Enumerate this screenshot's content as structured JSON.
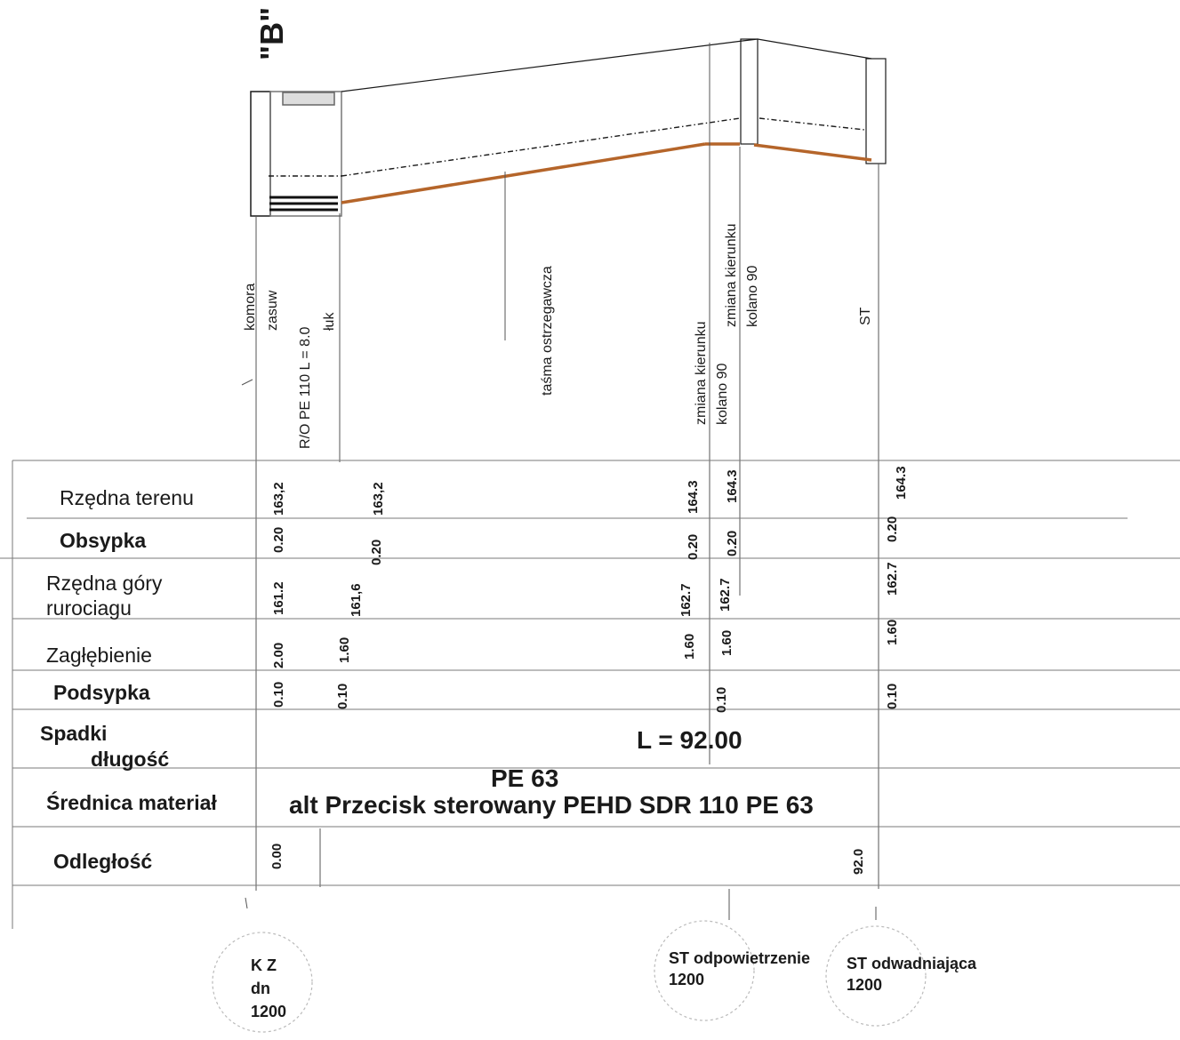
{
  "title": "\"B\"",
  "structures": {
    "komora": "komora",
    "zasuw": "zasuw",
    "ro": "R/O  PE 110 L = 8.0",
    "luk": "łuk",
    "tasma": "taśma ostrzegawcza",
    "zmiana1": "zmiana kierunku",
    "kolano1": "kolano 90",
    "zmiana2": "zmiana kierunku",
    "kolano2": "kolano 90",
    "st": "ST"
  },
  "rows": {
    "rzedna_terenu": "Rzędna terenu",
    "obsypka": "Obsypka",
    "rzedna_gory_1": "Rzędna góry",
    "rzedna_gory_2": "rurociagu",
    "zaglebienie": "Zagłębienie",
    "podsypka": "Podsypka",
    "spadki": "Spadki",
    "dlugosc": "długość",
    "srednica": "Średnica materiał",
    "odleglosc": "Odległość"
  },
  "values": {
    "teren_1": "163,2",
    "teren_2": "163,2",
    "teren_3": "164.3",
    "teren_4": "164.3",
    "teren_5": "164.3",
    "obs_1": "0.20",
    "obs_2": "0.20",
    "obs_3": "0.20",
    "obs_4": "0.20",
    "obs_5": "0.20",
    "gora_1": "161.2",
    "gora_2": "161,6",
    "gora_3": "162.7",
    "gora_4": "162.7",
    "gora_5": "162.7",
    "zag_1": "2.00",
    "zag_2": "1.60",
    "zag_3": "1.60",
    "zag_4": "1.60",
    "zag_5": "1.60",
    "pod_1": "0.10",
    "pod_2": "0.10",
    "pod_3": "0.10",
    "pod_4": "0.10",
    "length": "L = 92.00",
    "material_1": "PE 63",
    "material_2": "alt Przecisk sterowany PEHD  SDR 110 PE 63",
    "dist_start": "0.00",
    "dist_end": "92.0"
  },
  "wells": {
    "kz_1": "K Z",
    "kz_2": "dn",
    "kz_3": "1200",
    "st1_1": "ST odpowietrzenie",
    "st1_2": "1200",
    "st2_1": "ST odwadniająca",
    "st2_2": "1200"
  },
  "colors": {
    "pipe": "#b5652a",
    "line": "#1a1a1a",
    "grid": "#7a7a7a"
  }
}
